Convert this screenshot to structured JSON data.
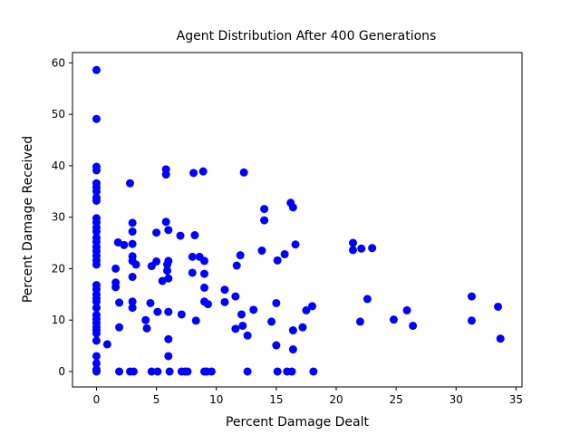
{
  "chart_data": {
    "type": "scatter",
    "title": "Agent Distribution After 400 Generations",
    "xlabel": "Percent Damage Dealt",
    "ylabel": "Percent Damage Received",
    "xlim": [
      -2,
      35.5
    ],
    "ylim": [
      -3,
      62
    ],
    "xticks": [
      0,
      5,
      10,
      15,
      20,
      25,
      30,
      35
    ],
    "yticks": [
      0,
      10,
      20,
      30,
      40,
      50,
      60
    ],
    "grid": false,
    "marker_color": "#0000ff",
    "points": [
      [
        0,
        58.6
      ],
      [
        0,
        49.1
      ],
      [
        0,
        39.8
      ],
      [
        0,
        39.1
      ],
      [
        0,
        36.6
      ],
      [
        0,
        35.8
      ],
      [
        0,
        35.0
      ],
      [
        0,
        33.8
      ],
      [
        0,
        33.2
      ],
      [
        0,
        29.8
      ],
      [
        0,
        29.0
      ],
      [
        0,
        28.0
      ],
      [
        0,
        27.2
      ],
      [
        0,
        26.0
      ],
      [
        0,
        25.2
      ],
      [
        0,
        24.2
      ],
      [
        0,
        23.4
      ],
      [
        0,
        22.5
      ],
      [
        0,
        21.6
      ],
      [
        0,
        20.8
      ],
      [
        0,
        16.8
      ],
      [
        0,
        16.0
      ],
      [
        0,
        15.0
      ],
      [
        0,
        14.2
      ],
      [
        0,
        13.6
      ],
      [
        0,
        12.4
      ],
      [
        0,
        11.0
      ],
      [
        0,
        10.2
      ],
      [
        0,
        9.4
      ],
      [
        0,
        8.6
      ],
      [
        0,
        8.0
      ],
      [
        0,
        7.4
      ],
      [
        0,
        6.0
      ],
      [
        0,
        3.0
      ],
      [
        0,
        1.6
      ],
      [
        0,
        0.4
      ],
      [
        0,
        0
      ],
      [
        0.9,
        5.3
      ],
      [
        1.6,
        20.0
      ],
      [
        1.6,
        17.3
      ],
      [
        1.6,
        16.4
      ],
      [
        1.8,
        25.1
      ],
      [
        1.9,
        13.4
      ],
      [
        1.9,
        8.6
      ],
      [
        1.9,
        0
      ],
      [
        2.3,
        24.6
      ],
      [
        2.8,
        36.6
      ],
      [
        3.0,
        28.9
      ],
      [
        3.0,
        27.2
      ],
      [
        3.0,
        24.8
      ],
      [
        3.0,
        22.4
      ],
      [
        3.0,
        21.5
      ],
      [
        3.0,
        18.4
      ],
      [
        3.0,
        13.6
      ],
      [
        3.0,
        12.4
      ],
      [
        3.3,
        20.8
      ],
      [
        2.8,
        0
      ],
      [
        3.1,
        0
      ],
      [
        4.1,
        10.0
      ],
      [
        4.2,
        8.4
      ],
      [
        4.5,
        13.3
      ],
      [
        4.6,
        20.5
      ],
      [
        4.6,
        0
      ],
      [
        5.0,
        27.0
      ],
      [
        5.0,
        21.4
      ],
      [
        5.1,
        11.6
      ],
      [
        5.1,
        0
      ],
      [
        5.5,
        17.6
      ],
      [
        5.8,
        39.3
      ],
      [
        5.8,
        38.3
      ],
      [
        5.8,
        29.1
      ],
      [
        5.9,
        20.8
      ],
      [
        5.9,
        19.6
      ],
      [
        6.0,
        27.5
      ],
      [
        6.0,
        21.5
      ],
      [
        6.0,
        18.1
      ],
      [
        6.0,
        11.6
      ],
      [
        6.0,
        6.3
      ],
      [
        6.0,
        3.0
      ],
      [
        6.1,
        0
      ],
      [
        7.0,
        26.4
      ],
      [
        7.1,
        11.1
      ],
      [
        7.1,
        0
      ],
      [
        7.4,
        0
      ],
      [
        7.6,
        0
      ],
      [
        8.1,
        38.6
      ],
      [
        8.0,
        22.3
      ],
      [
        8.0,
        19.2
      ],
      [
        8.2,
        26.5
      ],
      [
        8.3,
        9.9
      ],
      [
        8.6,
        22.3
      ],
      [
        8.9,
        38.9
      ],
      [
        9.0,
        21.5
      ],
      [
        9.0,
        19.0
      ],
      [
        9.0,
        16.3
      ],
      [
        9.0,
        13.6
      ],
      [
        9.3,
        13.1
      ],
      [
        9.0,
        0
      ],
      [
        9.2,
        0
      ],
      [
        9.6,
        0
      ],
      [
        10.7,
        15.9
      ],
      [
        10.7,
        13.5
      ],
      [
        11.6,
        14.6
      ],
      [
        11.6,
        8.3
      ],
      [
        11.7,
        20.6
      ],
      [
        12.0,
        22.6
      ],
      [
        12.1,
        11.1
      ],
      [
        12.2,
        8.9
      ],
      [
        12.3,
        38.7
      ],
      [
        12.6,
        7.0
      ],
      [
        12.6,
        0
      ],
      [
        13.1,
        12.0
      ],
      [
        13.8,
        23.5
      ],
      [
        14.0,
        31.6
      ],
      [
        14.0,
        29.4
      ],
      [
        14.6,
        9.7
      ],
      [
        15.0,
        13.3
      ],
      [
        15.0,
        5.1
      ],
      [
        15.1,
        21.6
      ],
      [
        15.1,
        0
      ],
      [
        15.7,
        22.8
      ],
      [
        15.9,
        0
      ],
      [
        16.2,
        32.8
      ],
      [
        16.4,
        31.9
      ],
      [
        16.4,
        8.0
      ],
      [
        16.4,
        4.3
      ],
      [
        16.3,
        0
      ],
      [
        16.6,
        24.7
      ],
      [
        17.2,
        8.6
      ],
      [
        17.5,
        11.9
      ],
      [
        18.0,
        12.7
      ],
      [
        18.1,
        0
      ],
      [
        21.4,
        25.0
      ],
      [
        21.4,
        23.6
      ],
      [
        22.0,
        9.7
      ],
      [
        22.1,
        23.9
      ],
      [
        22.6,
        14.1
      ],
      [
        23.0,
        24.0
      ],
      [
        24.8,
        10.1
      ],
      [
        25.9,
        11.9
      ],
      [
        26.4,
        8.9
      ],
      [
        31.3,
        14.6
      ],
      [
        31.3,
        9.9
      ],
      [
        33.5,
        12.6
      ],
      [
        33.7,
        6.4
      ]
    ]
  }
}
